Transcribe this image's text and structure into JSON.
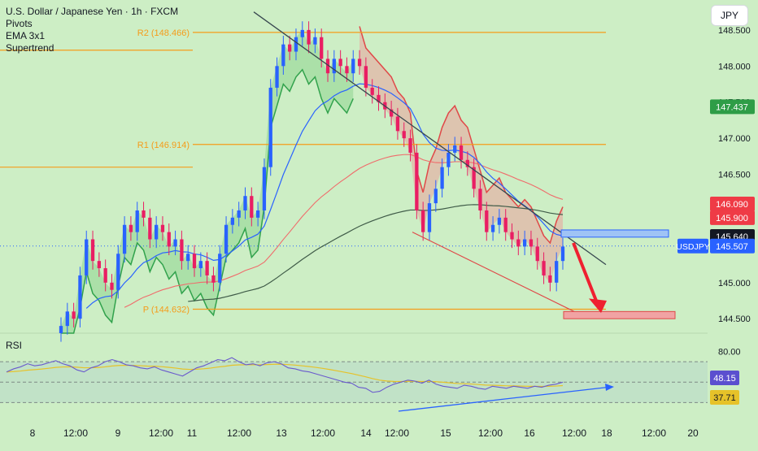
{
  "legend": {
    "title": "U.S. Dollar / Japanese Yen · 1h · FXCM",
    "indicators": [
      "Pivots",
      "EMA 3x1",
      "Supertrend"
    ]
  },
  "currency_button": "JPY",
  "symbol_tag": "USDJPY",
  "rsi_label": "RSI",
  "colors": {
    "background": "#cdeec5",
    "bull_candle": "#2962ff",
    "bear_candle": "#e91e63",
    "pivot_line": "#f59c1a",
    "ema_fast": "#2962ff",
    "ema_mid": "#f06b6b",
    "ema_slow": "#3f5b48",
    "supertrend_up": "#31a24c",
    "supertrend_down": "#e04848",
    "trend_line": "#37474f",
    "arrow": "#ef2030",
    "rsi_line": "#6a5acd",
    "rsi_ma": "#e6c229"
  },
  "chart_data": {
    "type": "candlestick",
    "price_axis": {
      "range": [
        144.3,
        148.6
      ],
      "ticks": [
        "148.500",
        "148.000",
        "147.500",
        "147.000",
        "146.500",
        "146.000",
        "145.500",
        "145.000",
        "144.500"
      ]
    },
    "time_axis_labels": [
      "8",
      "12:00",
      "9",
      "12:00",
      "11",
      "12:00",
      "13",
      "12:00",
      "14",
      "12:00",
      "15",
      "12:00",
      "16",
      "12:00",
      "18",
      "12:00",
      "20"
    ],
    "pivots": [
      {
        "label": "R2 (148.466)",
        "value": 148.466
      },
      {
        "label": "R1 (146.914)",
        "value": 146.914
      },
      {
        "label": "P (144.632)",
        "value": 144.632
      }
    ],
    "price_tags": [
      {
        "label": "147.437",
        "value": 147.437,
        "color": "#2e9d47"
      },
      {
        "label": "146.090",
        "value": 146.09,
        "color": "#ef3b46"
      },
      {
        "label": "145.900",
        "value": 145.9,
        "color": "#ef3b46"
      },
      {
        "label": "145.640",
        "value": 145.64,
        "color": "#131722"
      },
      {
        "label": "145.507",
        "value": 145.507,
        "color": "#2962ff"
      }
    ],
    "ohlc_close": [
      144.4,
      144.6,
      144.5,
      145.1,
      145.6,
      145.3,
      145.2,
      145.0,
      144.9,
      145.4,
      145.8,
      145.7,
      146.0,
      145.9,
      145.6,
      145.8,
      145.7,
      145.5,
      145.6,
      145.3,
      145.4,
      145.2,
      145.3,
      145.1,
      145.0,
      145.4,
      145.8,
      145.9,
      146.0,
      146.2,
      145.9,
      146.0,
      146.6,
      147.7,
      148.0,
      148.3,
      148.2,
      148.4,
      148.5,
      148.3,
      148.4,
      148.1,
      147.9,
      148.1,
      148.0,
      147.9,
      148.1,
      148.0,
      147.7,
      147.6,
      147.5,
      147.4,
      147.3,
      147.1,
      147.0,
      146.8,
      146.0,
      145.7,
      146.1,
      146.3,
      146.6,
      146.8,
      146.9,
      146.7,
      146.6,
      146.3,
      146.0,
      145.7,
      145.8,
      145.9,
      145.7,
      145.6,
      145.5,
      145.6,
      145.5,
      145.3,
      145.1,
      145.0,
      145.3,
      145.5
    ],
    "trend_lines": [
      {
        "from": [
          148.75,
          0
        ],
        "to": [
          145.25,
          1
        ]
      },
      {
        "from": [
          145.7,
          0
        ],
        "to": [
          144.9,
          1
        ]
      }
    ],
    "target_zone": {
      "from": 144.6,
      "to": 144.5
    },
    "resistance_zone": {
      "from": 145.73,
      "to": 145.63
    },
    "rsi": {
      "levels": [
        "80.00"
      ],
      "values": [
        60,
        63,
        65,
        68,
        66,
        67,
        69,
        71,
        68,
        66,
        62,
        60,
        64,
        66,
        70,
        72,
        70,
        67,
        66,
        64,
        63,
        65,
        62,
        60,
        58,
        56,
        60,
        64,
        66,
        69,
        72,
        71,
        74,
        70,
        67,
        68,
        66,
        69,
        70,
        68,
        64,
        63,
        61,
        60,
        58,
        56,
        54,
        52,
        50,
        49,
        45,
        44,
        40,
        41,
        45,
        48,
        50,
        52,
        51,
        49,
        52,
        48,
        46,
        45,
        44,
        47,
        46,
        44,
        43,
        46,
        45,
        44,
        46,
        45,
        44,
        46,
        45,
        47,
        48,
        50
      ],
      "tags": [
        {
          "label": "48.15",
          "color": "#5b4fcf"
        },
        {
          "label": "37.71",
          "color": "#e6c229"
        }
      ]
    }
  }
}
